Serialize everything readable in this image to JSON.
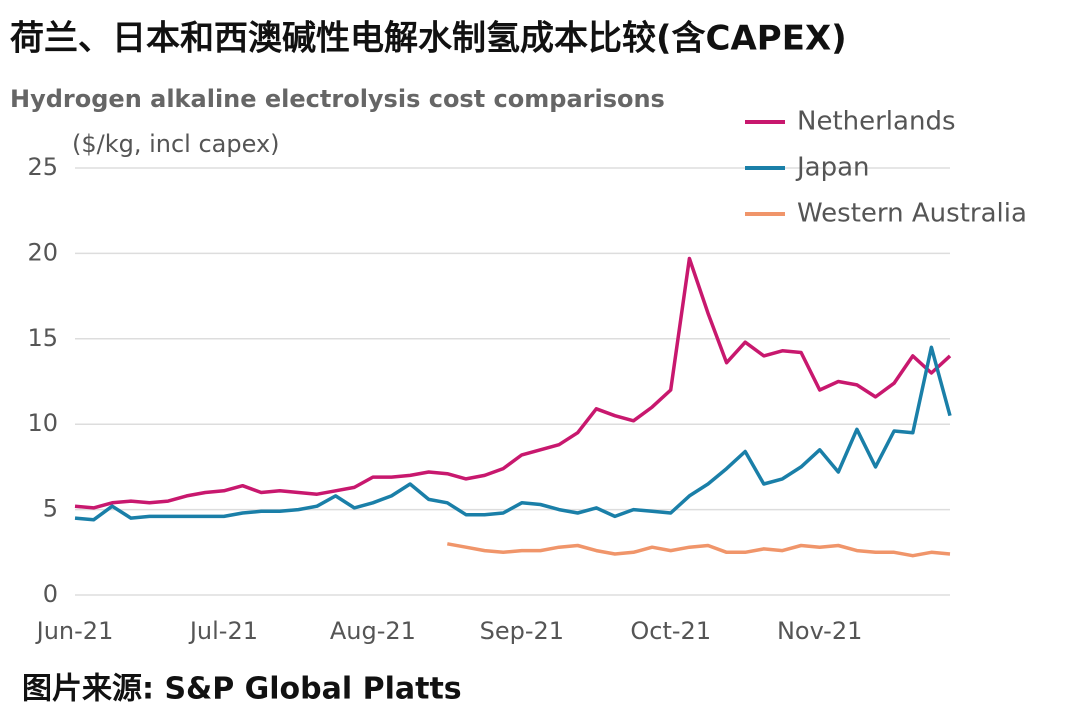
{
  "chart_data": {
    "type": "line",
    "title": "荷兰、日本和西澳碱性电解水制氢成本比较(含CAPEX)",
    "subtitle": "Hydrogen alkaline electrolysis cost comparisons",
    "y_label": "($/kg, incl capex)",
    "source": "图片来源: S&P Global Platts",
    "categories": [
      "Jun-21",
      null,
      null,
      null,
      null,
      null,
      null,
      null,
      "Jul-21",
      null,
      null,
      null,
      null,
      null,
      null,
      null,
      "Aug-21",
      null,
      null,
      null,
      null,
      null,
      null,
      null,
      "Sep-21",
      null,
      null,
      null,
      null,
      null,
      null,
      null,
      "Oct-21",
      null,
      null,
      null,
      null,
      null,
      null,
      null,
      "Nov-21",
      null,
      null,
      null,
      null,
      null,
      null,
      null
    ],
    "series": [
      {
        "name": "Netherlands",
        "color": "#c8186e",
        "values": [
          5.2,
          5.1,
          5.4,
          5.5,
          5.4,
          5.5,
          5.8,
          6.0,
          6.1,
          6.4,
          6.0,
          6.1,
          6.0,
          5.9,
          6.1,
          6.3,
          6.9,
          6.9,
          7.0,
          7.2,
          7.1,
          6.8,
          7.0,
          7.4,
          8.2,
          8.5,
          8.8,
          9.5,
          10.9,
          10.5,
          10.2,
          11.0,
          12.0,
          19.7,
          16.5,
          13.6,
          14.8,
          14.0,
          14.3,
          14.2,
          12.0,
          12.5,
          12.3,
          11.6,
          12.4,
          14.0,
          13.0,
          14.0
        ]
      },
      {
        "name": "Japan",
        "color": "#1a7fa8",
        "values": [
          4.5,
          4.4,
          5.2,
          4.5,
          4.6,
          4.6,
          4.6,
          4.6,
          4.6,
          4.8,
          4.9,
          4.9,
          5.0,
          5.2,
          5.8,
          5.1,
          5.4,
          5.8,
          6.5,
          5.6,
          5.4,
          4.7,
          4.7,
          4.8,
          5.4,
          5.3,
          5.0,
          4.8,
          5.1,
          4.6,
          5.0,
          4.9,
          4.8,
          5.8,
          6.5,
          7.4,
          8.4,
          6.5,
          6.8,
          7.5,
          8.5,
          7.2,
          9.7,
          7.5,
          9.6,
          9.5,
          14.5,
          10.5
        ]
      },
      {
        "name": "Western Australia",
        "color": "#f0956a",
        "values": [
          null,
          null,
          null,
          null,
          null,
          null,
          null,
          null,
          null,
          null,
          null,
          null,
          null,
          null,
          null,
          null,
          null,
          null,
          null,
          null,
          3.0,
          2.8,
          2.6,
          2.5,
          2.6,
          2.6,
          2.8,
          2.9,
          2.6,
          2.4,
          2.5,
          2.8,
          2.6,
          2.8,
          2.9,
          2.5,
          2.5,
          2.7,
          2.6,
          2.9,
          2.8,
          2.9,
          2.6,
          2.5,
          2.5,
          2.3,
          2.5,
          2.4
        ]
      }
    ],
    "ylim": [
      0,
      25
    ],
    "yticks": [
      0,
      5,
      10,
      15,
      20,
      25
    ],
    "grid": true,
    "legend": "upper right"
  }
}
